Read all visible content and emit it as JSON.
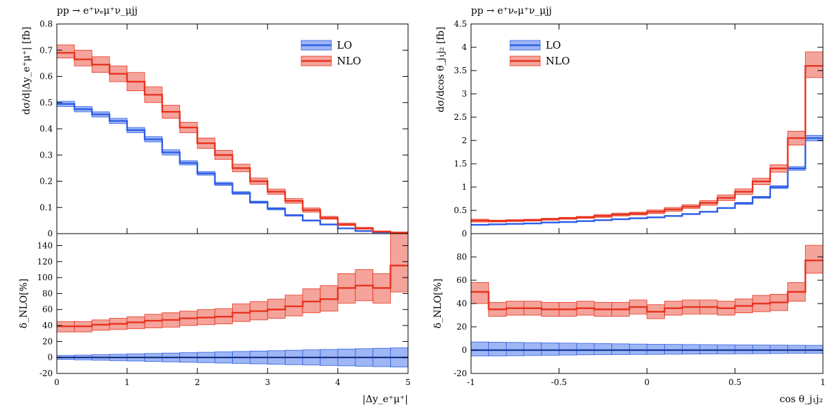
{
  "colors": {
    "lo": "#2e5ee6",
    "lo_band": "#7f9df2",
    "nlo": "#e8321e",
    "nlo_band": "#f0857a"
  },
  "chart_data": [
    {
      "type": "line",
      "title": "pp → e⁺νₑμ⁺ν_μjj",
      "xlabel": "|Δy_e⁺μ⁺|",
      "xlim": [
        0,
        5
      ],
      "xticks": [
        "0",
        "1",
        "2",
        "3",
        "4",
        "5"
      ],
      "x_edges": [
        0,
        0.25,
        0.5,
        0.75,
        1,
        1.25,
        1.5,
        1.75,
        2,
        2.25,
        2.5,
        2.75,
        3,
        3.25,
        3.5,
        3.75,
        4,
        4.25,
        4.5,
        4.75,
        5
      ],
      "main": {
        "ylabel": "dσ/d|Δy_e⁺μ⁺| [fb]",
        "ylim": [
          0,
          0.8
        ],
        "yticks": [
          "0",
          "0.1",
          "0.2",
          "0.3",
          "0.4",
          "0.5",
          "0.6",
          "0.7",
          "0.8"
        ],
        "legend": [
          "LO",
          "NLO"
        ],
        "legend_position": "top-right",
        "series": [
          {
            "name": "LO",
            "values": [
              0.495,
              0.475,
              0.455,
              0.43,
              0.395,
              0.36,
              0.31,
              0.27,
              0.23,
              0.19,
              0.155,
              0.12,
              0.095,
              0.07,
              0.05,
              0.035,
              0.02,
              0.01,
              0.005,
              0.002
            ],
            "lower": [
              0.485,
              0.465,
              0.445,
              0.42,
              0.385,
              0.35,
              0.3,
              0.262,
              0.223,
              0.184,
              0.15,
              0.116,
              0.091,
              0.067,
              0.048,
              0.033,
              0.019,
              0.009,
              0.004,
              0.001
            ],
            "upper": [
              0.505,
              0.485,
              0.465,
              0.44,
              0.405,
              0.37,
              0.32,
              0.278,
              0.237,
              0.196,
              0.16,
              0.124,
              0.099,
              0.073,
              0.052,
              0.037,
              0.021,
              0.011,
              0.006,
              0.003
            ]
          },
          {
            "name": "NLO",
            "values": [
              0.69,
              0.665,
              0.645,
              0.61,
              0.58,
              0.53,
              0.465,
              0.405,
              0.345,
              0.3,
              0.25,
              0.2,
              0.16,
              0.125,
              0.09,
              0.06,
              0.035,
              0.02,
              0.008,
              0.004
            ],
            "lower": [
              0.67,
              0.64,
              0.615,
              0.58,
              0.545,
              0.5,
              0.44,
              0.385,
              0.325,
              0.283,
              0.236,
              0.188,
              0.15,
              0.116,
              0.082,
              0.055,
              0.031,
              0.017,
              0.006,
              0.002
            ],
            "upper": [
              0.72,
              0.7,
              0.675,
              0.64,
              0.615,
              0.56,
              0.49,
              0.425,
              0.365,
              0.318,
              0.265,
              0.212,
              0.17,
              0.134,
              0.098,
              0.066,
              0.04,
              0.024,
              0.01,
              0.006
            ]
          }
        ]
      },
      "ratio": {
        "ylabel": "δ_NLO[%]",
        "ylim": [
          -20,
          155
        ],
        "yticks": [
          "-20",
          "0",
          "20",
          "40",
          "60",
          "80",
          "100",
          "120",
          "140"
        ],
        "series": [
          {
            "name": "LO",
            "values": [
              0,
              0,
              0,
              0,
              0,
              0,
              0,
              0,
              0,
              0,
              0,
              0,
              0,
              0,
              0,
              0,
              0,
              0,
              0,
              0
            ],
            "lower": [
              -2.5,
              -3,
              -3.5,
              -4,
              -4.5,
              -5,
              -5.5,
              -6,
              -6.5,
              -7,
              -7.5,
              -8,
              -8.5,
              -9,
              -9.5,
              -10,
              -10.5,
              -11,
              -11.5,
              -12
            ],
            "upper": [
              2.5,
              3,
              3.5,
              4,
              4.5,
              5,
              5.5,
              6,
              6.5,
              7,
              7.5,
              8,
              8.5,
              9,
              9.5,
              10,
              10.5,
              11,
              11.5,
              12
            ]
          },
          {
            "name": "NLO",
            "values": [
              39,
              39,
              41,
              42,
              44,
              46,
              47,
              49,
              50,
              51,
              56,
              58,
              60,
              64,
              70,
              73,
              87,
              90,
              87,
              115
            ],
            "lower": [
              32,
              32,
              34,
              35,
              36,
              37,
              38,
              40,
              41,
              42,
              45,
              47,
              49,
              52,
              56,
              58,
              68,
              71,
              68,
              82
            ],
            "upper": [
              45,
              45,
              47,
              49,
              51,
              54,
              56,
              58,
              60,
              61,
              67,
              70,
              73,
              78,
              86,
              90,
              105,
              110,
              105,
              155
            ]
          }
        ]
      }
    },
    {
      "type": "line",
      "title": "pp → e⁺νₑμ⁺ν_μjj",
      "xlabel": "cos θ_j₁j₂",
      "xlim": [
        -1,
        1
      ],
      "xticks": [
        "-1",
        "-0.5",
        "0",
        "0.5",
        "1"
      ],
      "x_edges": [
        -1,
        -0.9,
        -0.8,
        -0.7,
        -0.6,
        -0.5,
        -0.4,
        -0.3,
        -0.2,
        -0.1,
        0,
        0.1,
        0.2,
        0.3,
        0.4,
        0.5,
        0.6,
        0.7,
        0.8,
        0.9,
        1
      ],
      "main": {
        "ylabel": "dσ/dcos θ_j₁j₂ [fb]",
        "ylim": [
          0,
          4.5
        ],
        "yticks": [
          "0",
          "0.5",
          "1",
          "1.5",
          "2",
          "2.5",
          "3",
          "3.5",
          "4",
          "4.5"
        ],
        "legend": [
          "LO",
          "NLO"
        ],
        "legend_position": "top-left",
        "series": [
          {
            "name": "LO",
            "values": [
              0.19,
              0.2,
              0.21,
              0.22,
              0.24,
              0.25,
              0.27,
              0.29,
              0.31,
              0.33,
              0.35,
              0.38,
              0.42,
              0.47,
              0.55,
              0.65,
              0.78,
              1.0,
              1.4,
              2.05
            ],
            "lower": [
              0.18,
              0.19,
              0.2,
              0.21,
              0.23,
              0.24,
              0.26,
              0.28,
              0.3,
              0.32,
              0.34,
              0.37,
              0.41,
              0.46,
              0.54,
              0.63,
              0.76,
              0.97,
              1.36,
              1.99
            ],
            "upper": [
              0.2,
              0.21,
              0.22,
              0.23,
              0.25,
              0.26,
              0.28,
              0.3,
              0.32,
              0.34,
              0.36,
              0.39,
              0.43,
              0.48,
              0.56,
              0.67,
              0.8,
              1.03,
              1.44,
              2.11
            ]
          },
          {
            "name": "NLO",
            "values": [
              0.28,
              0.27,
              0.28,
              0.29,
              0.31,
              0.33,
              0.35,
              0.38,
              0.41,
              0.43,
              0.47,
              0.52,
              0.58,
              0.66,
              0.77,
              0.9,
              1.12,
              1.4,
              2.05,
              3.6
            ],
            "lower": [
              0.25,
              0.25,
              0.26,
              0.27,
              0.29,
              0.31,
              0.33,
              0.35,
              0.38,
              0.4,
              0.43,
              0.48,
              0.54,
              0.61,
              0.71,
              0.84,
              1.05,
              1.32,
              1.9,
              3.35
            ],
            "upper": [
              0.31,
              0.29,
              0.3,
              0.31,
              0.33,
              0.35,
              0.37,
              0.41,
              0.44,
              0.46,
              0.51,
              0.56,
              0.62,
              0.71,
              0.83,
              0.96,
              1.19,
              1.48,
              2.2,
              3.9
            ]
          }
        ]
      },
      "ratio": {
        "ylabel": "δ_NLO[%]",
        "ylim": [
          -20,
          100
        ],
        "yticks": [
          "-20",
          "0",
          "20",
          "40",
          "60",
          "80"
        ],
        "series": [
          {
            "name": "LO",
            "values": [
              0,
              0,
              0,
              0,
              0,
              0,
              0,
              0,
              0,
              0,
              0,
              0,
              0,
              0,
              0,
              0,
              0,
              0,
              0,
              0
            ],
            "lower": [
              -5,
              -5,
              -4.8,
              -4.6,
              -4.4,
              -4.2,
              -4,
              -3.9,
              -3.8,
              -3.7,
              -3.6,
              -3.5,
              -3.4,
              -3.3,
              -3.2,
              -3.1,
              -3,
              -2.9,
              -2.8,
              -2.7
            ],
            "upper": [
              7,
              6.8,
              6.6,
              6.4,
              6.2,
              6,
              5.8,
              5.6,
              5.4,
              5.2,
              5,
              4.9,
              4.8,
              4.7,
              4.6,
              4.5,
              4.4,
              4.3,
              4.2,
              4.1
            ]
          },
          {
            "name": "NLO",
            "values": [
              50,
              35,
              36,
              36,
              35,
              35,
              36,
              35,
              35,
              37,
              33,
              36,
              37,
              37,
              36,
              38,
              40,
              41,
              50,
              77
            ],
            "lower": [
              40,
              29,
              30,
              30,
              29,
              29,
              30,
              29,
              29,
              31,
              27,
              30,
              31,
              31,
              30,
              32,
              33,
              34,
              42,
              66
            ],
            "upper": [
              58,
              41,
              42,
              42,
              41,
              41,
              42,
              41,
              41,
              43,
              39,
              42,
              43,
              43,
              42,
              44,
              47,
              48,
              58,
              90
            ]
          }
        ]
      }
    }
  ]
}
